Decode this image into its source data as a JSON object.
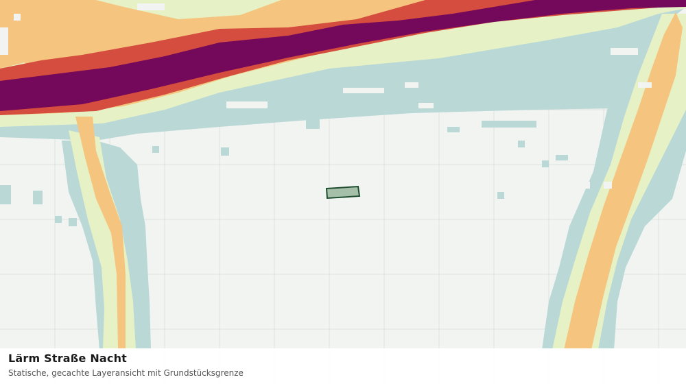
{
  "map": {
    "layer": "Lärm Straße Nacht",
    "colors": {
      "background": "#f2f4f2",
      "grid": "#dfe3e0",
      "band_lowest": "#b9d8d6",
      "band_low": "#e6f2c6",
      "band_mid": "#f5c57f",
      "band_high": "#d44d3e",
      "band_highest": "#74085a",
      "parcel_fill": "#a5bfa8",
      "parcel_stroke": "#1e4d2e"
    }
  },
  "caption": {
    "title": "Lärm Straße Nacht",
    "subtitle": "Statische, gecachte Layeransicht mit Grundstücksgrenze"
  }
}
